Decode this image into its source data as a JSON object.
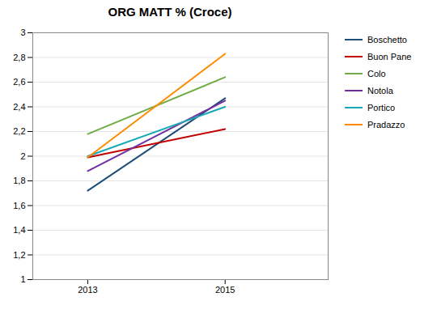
{
  "chart_data": {
    "type": "line",
    "title": "ORG MATT % (Croce)",
    "x": [
      2013,
      2015
    ],
    "series": [
      {
        "name": "Boschetto",
        "values": [
          1.72,
          2.47
        ],
        "color": "#1F4E79"
      },
      {
        "name": "Buon Pane",
        "values": [
          1.99,
          2.22
        ],
        "color": "#C00000"
      },
      {
        "name": "Colo",
        "values": [
          2.18,
          2.64
        ],
        "color": "#70AD47"
      },
      {
        "name": "Notola",
        "values": [
          1.88,
          2.45
        ],
        "color": "#7030A0"
      },
      {
        "name": "Portico",
        "values": [
          2.0,
          2.4
        ],
        "color": "#17A8B8"
      },
      {
        "name": "Pradazzo",
        "values": [
          1.99,
          2.83
        ],
        "color": "#FF8C00"
      }
    ],
    "xlim": [
      2012.2,
      2016.5
    ],
    "xticks": [
      2013,
      2015
    ],
    "ylim": [
      1.0,
      3.0
    ],
    "yticks": [
      1,
      {
        "value": 1.2,
        "label": "1,2"
      },
      {
        "value": 1.4,
        "label": "1,4"
      },
      {
        "value": 1.6,
        "label": "1,6"
      },
      {
        "value": 1.8,
        "label": "1,8"
      },
      2,
      {
        "value": 2.2,
        "label": "2,2"
      },
      {
        "value": 2.4,
        "label": "2,4"
      },
      {
        "value": 2.6,
        "label": "2,6"
      },
      {
        "value": 2.8,
        "label": "2,8"
      },
      3
    ],
    "grid": true,
    "legend": "right"
  }
}
